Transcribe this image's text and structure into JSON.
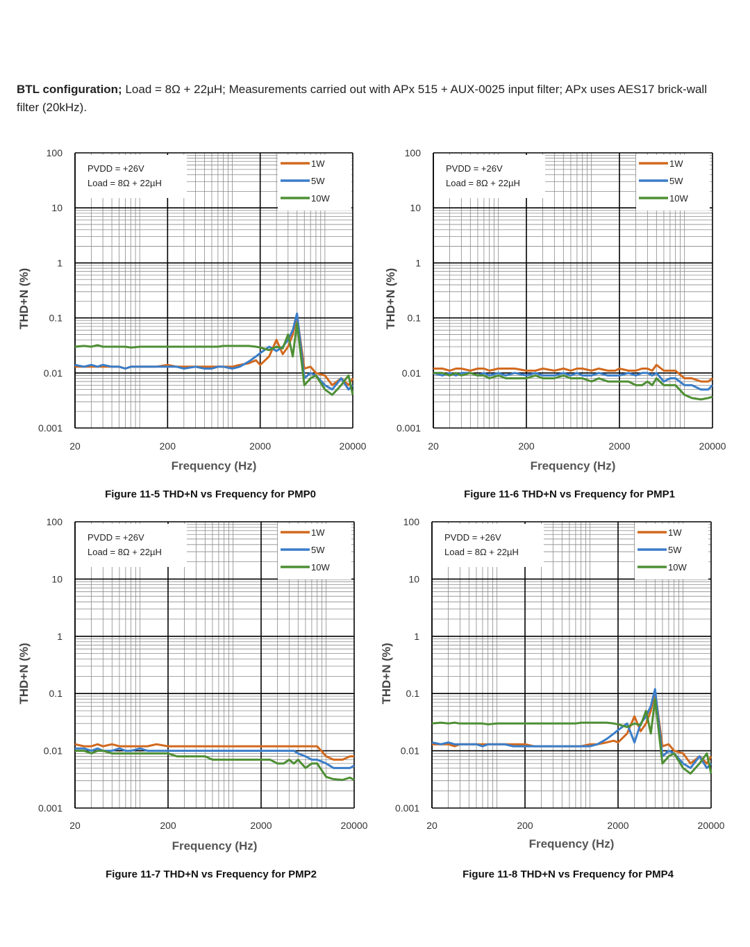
{
  "intro": {
    "lead": "BTL configuration;",
    "text": " Load = 8Ω + 22µH; Measurements carried out with APx 515 + AUX-0025 input filter; APx uses AES17 brick-wall filter (20kHz)."
  },
  "colors": {
    "1W": "#D2691E",
    "5W": "#3A7DC9",
    "10W": "#4E8F34",
    "grid_major": "#000000",
    "grid_minor": "#8a8a8a"
  },
  "chart_data": [
    {
      "type": "line",
      "caption": "Figure 11-5 THD+N vs Frequency for PMP0",
      "xlabel": "Frequency (Hz)",
      "ylabel": "THD+N (%)",
      "x_scale": "log",
      "y_scale": "log",
      "xlim": [
        20,
        20000
      ],
      "ylim": [
        0.001,
        100
      ],
      "x_ticks": [
        "20",
        "200",
        "2000",
        "20000"
      ],
      "y_ticks": [
        "100",
        "10",
        "1",
        "0.1",
        "0.01",
        "0.001"
      ],
      "annotation": [
        "PVDD = +26V",
        "Load = 8Ω + 22µH"
      ],
      "legend": "top-right",
      "grid": true,
      "x": [
        20,
        25,
        30,
        35,
        40,
        50,
        60,
        70,
        80,
        100,
        120,
        150,
        200,
        250,
        300,
        400,
        500,
        600,
        700,
        800,
        1000,
        1200,
        1500,
        1800,
        2000,
        2500,
        3000,
        3500,
        4000,
        4500,
        5000,
        6000,
        7000,
        8000,
        10000,
        12000,
        15000,
        18000,
        20000
      ],
      "series": [
        {
          "name": "1W",
          "values": [
            0.013,
            0.013,
            0.013,
            0.013,
            0.013,
            0.013,
            0.013,
            0.012,
            0.013,
            0.013,
            0.013,
            0.013,
            0.014,
            0.013,
            0.013,
            0.013,
            0.013,
            0.013,
            0.013,
            0.013,
            0.013,
            0.014,
            0.015,
            0.017,
            0.014,
            0.02,
            0.04,
            0.022,
            0.03,
            0.05,
            0.11,
            0.012,
            0.013,
            0.01,
            0.009,
            0.006,
            0.008,
            0.006,
            0.008
          ]
        },
        {
          "name": "5W",
          "values": [
            0.014,
            0.013,
            0.014,
            0.013,
            0.014,
            0.013,
            0.013,
            0.012,
            0.013,
            0.013,
            0.013,
            0.013,
            0.013,
            0.013,
            0.012,
            0.013,
            0.012,
            0.012,
            0.013,
            0.013,
            0.012,
            0.013,
            0.016,
            0.02,
            0.023,
            0.03,
            0.025,
            0.03,
            0.04,
            0.06,
            0.12,
            0.008,
            0.01,
            0.009,
            0.006,
            0.005,
            0.008,
            0.005,
            0.006
          ]
        },
        {
          "name": "10W",
          "values": [
            0.03,
            0.031,
            0.03,
            0.032,
            0.03,
            0.03,
            0.03,
            0.03,
            0.029,
            0.03,
            0.03,
            0.03,
            0.03,
            0.03,
            0.03,
            0.03,
            0.03,
            0.03,
            0.03,
            0.031,
            0.031,
            0.031,
            0.031,
            0.03,
            0.029,
            0.026,
            0.03,
            0.028,
            0.05,
            0.02,
            0.08,
            0.006,
            0.008,
            0.009,
            0.005,
            0.004,
            0.006,
            0.009,
            0.004
          ]
        }
      ]
    },
    {
      "type": "line",
      "caption": "Figure 11-6 THD+N vs Frequency for PMP1",
      "xlabel": "Frequency (Hz)",
      "ylabel": "THD+N (%)",
      "x_scale": "log",
      "y_scale": "log",
      "xlim": [
        20,
        20000
      ],
      "ylim": [
        0.001,
        100
      ],
      "x_ticks": [
        "20",
        "200",
        "2000",
        "20000"
      ],
      "y_ticks": [
        "100",
        "10",
        "1",
        "0.1",
        "0.01",
        "0.001"
      ],
      "annotation": [
        "PVDD = +26V",
        "Load = 8Ω + 22µH"
      ],
      "legend": "top-right",
      "grid": true,
      "x": [
        20,
        25,
        30,
        35,
        40,
        50,
        60,
        70,
        80,
        100,
        120,
        150,
        200,
        250,
        300,
        400,
        500,
        600,
        700,
        800,
        1000,
        1200,
        1500,
        1800,
        2000,
        2500,
        3000,
        3500,
        4000,
        4500,
        5000,
        6000,
        7000,
        8000,
        10000,
        12000,
        15000,
        18000,
        20000
      ],
      "series": [
        {
          "name": "1W",
          "values": [
            0.012,
            0.012,
            0.011,
            0.012,
            0.012,
            0.011,
            0.012,
            0.012,
            0.011,
            0.012,
            0.012,
            0.012,
            0.011,
            0.011,
            0.012,
            0.011,
            0.012,
            0.011,
            0.012,
            0.012,
            0.011,
            0.012,
            0.011,
            0.011,
            0.012,
            0.011,
            0.011,
            0.012,
            0.012,
            0.011,
            0.014,
            0.011,
            0.011,
            0.011,
            0.008,
            0.008,
            0.007,
            0.007,
            0.008
          ]
        },
        {
          "name": "5W",
          "values": [
            0.01,
            0.009,
            0.01,
            0.009,
            0.01,
            0.01,
            0.009,
            0.01,
            0.009,
            0.01,
            0.009,
            0.01,
            0.009,
            0.01,
            0.009,
            0.009,
            0.01,
            0.009,
            0.01,
            0.009,
            0.009,
            0.01,
            0.009,
            0.009,
            0.009,
            0.01,
            0.009,
            0.01,
            0.01,
            0.009,
            0.01,
            0.007,
            0.008,
            0.008,
            0.006,
            0.006,
            0.005,
            0.005,
            0.006
          ]
        },
        {
          "name": "10W",
          "values": [
            0.01,
            0.01,
            0.009,
            0.01,
            0.009,
            0.01,
            0.009,
            0.009,
            0.008,
            0.009,
            0.008,
            0.008,
            0.008,
            0.009,
            0.008,
            0.008,
            0.009,
            0.008,
            0.008,
            0.008,
            0.007,
            0.008,
            0.007,
            0.007,
            0.007,
            0.007,
            0.006,
            0.006,
            0.007,
            0.006,
            0.008,
            0.006,
            0.006,
            0.006,
            0.004,
            0.0035,
            0.0033,
            0.0035,
            0.0037
          ]
        }
      ]
    },
    {
      "type": "line",
      "caption": "Figure 11-7 THD+N vs Frequency for PMP2",
      "xlabel": "Frequency (Hz)",
      "ylabel": "THD+N (%)",
      "x_scale": "log",
      "y_scale": "log",
      "xlim": [
        20,
        20000
      ],
      "ylim": [
        0.001,
        100
      ],
      "x_ticks": [
        "20",
        "200",
        "2000",
        "20000"
      ],
      "y_ticks": [
        "100",
        "10",
        "1",
        "0.1",
        "0.01",
        "0.001"
      ],
      "annotation": [
        "PVDD = +26V",
        "Load = 8Ω + 22µH"
      ],
      "legend": "top-right",
      "grid": true,
      "x": [
        20,
        25,
        30,
        35,
        40,
        50,
        60,
        70,
        80,
        100,
        120,
        150,
        200,
        250,
        300,
        400,
        500,
        600,
        700,
        800,
        1000,
        1200,
        1500,
        1800,
        2000,
        2500,
        3000,
        3500,
        4000,
        4500,
        5000,
        6000,
        7000,
        8000,
        10000,
        12000,
        15000,
        18000,
        20000
      ],
      "series": [
        {
          "name": "1W",
          "values": [
            0.013,
            0.012,
            0.012,
            0.013,
            0.012,
            0.013,
            0.012,
            0.012,
            0.012,
            0.012,
            0.012,
            0.013,
            0.012,
            0.012,
            0.012,
            0.012,
            0.012,
            0.012,
            0.012,
            0.012,
            0.012,
            0.012,
            0.012,
            0.012,
            0.012,
            0.012,
            0.012,
            0.012,
            0.012,
            0.012,
            0.012,
            0.012,
            0.012,
            0.012,
            0.008,
            0.007,
            0.007,
            0.008,
            0.008
          ]
        },
        {
          "name": "5W",
          "values": [
            0.011,
            0.011,
            0.01,
            0.011,
            0.01,
            0.01,
            0.011,
            0.01,
            0.01,
            0.011,
            0.01,
            0.01,
            0.01,
            0.01,
            0.01,
            0.01,
            0.01,
            0.01,
            0.01,
            0.01,
            0.01,
            0.01,
            0.01,
            0.01,
            0.01,
            0.01,
            0.01,
            0.01,
            0.01,
            0.01,
            0.009,
            0.008,
            0.007,
            0.007,
            0.006,
            0.005,
            0.005,
            0.005,
            0.0055
          ]
        },
        {
          "name": "10W",
          "values": [
            0.01,
            0.01,
            0.009,
            0.01,
            0.01,
            0.009,
            0.009,
            0.009,
            0.009,
            0.009,
            0.009,
            0.009,
            0.009,
            0.008,
            0.008,
            0.008,
            0.008,
            0.007,
            0.007,
            0.007,
            0.007,
            0.007,
            0.007,
            0.007,
            0.007,
            0.007,
            0.006,
            0.006,
            0.007,
            0.006,
            0.007,
            0.005,
            0.006,
            0.006,
            0.0035,
            0.0032,
            0.0031,
            0.0034,
            0.0031
          ]
        }
      ]
    },
    {
      "type": "line",
      "caption": "Figure 11-8 THD+N vs Frequency for PMP4",
      "xlabel": "Frequency (Hz)",
      "ylabel": "THD+N (%)",
      "x_scale": "log",
      "y_scale": "log",
      "xlim": [
        20,
        20000
      ],
      "ylim": [
        0.001,
        100
      ],
      "x_ticks": [
        "20",
        "200",
        "2000",
        "20000"
      ],
      "y_ticks": [
        "100",
        "10",
        "1",
        "0.1",
        "0.01",
        "0.001"
      ],
      "annotation": [
        "PVDD = +26V",
        "Load = 8Ω + 22µH"
      ],
      "legend": "top-right",
      "grid": true,
      "x": [
        20,
        25,
        30,
        35,
        40,
        50,
        60,
        70,
        80,
        100,
        120,
        150,
        200,
        250,
        300,
        400,
        500,
        600,
        700,
        800,
        1000,
        1200,
        1500,
        1800,
        2000,
        2500,
        3000,
        3500,
        4000,
        4500,
        5000,
        6000,
        7000,
        8000,
        10000,
        12000,
        15000,
        18000,
        20000
      ],
      "series": [
        {
          "name": "1W",
          "values": [
            0.013,
            0.013,
            0.013,
            0.012,
            0.013,
            0.013,
            0.013,
            0.013,
            0.013,
            0.013,
            0.013,
            0.013,
            0.013,
            0.012,
            0.012,
            0.012,
            0.012,
            0.012,
            0.012,
            0.012,
            0.013,
            0.013,
            0.014,
            0.015,
            0.014,
            0.02,
            0.04,
            0.022,
            0.03,
            0.05,
            0.11,
            0.012,
            0.013,
            0.01,
            0.009,
            0.006,
            0.008,
            0.006,
            0.008
          ]
        },
        {
          "name": "5W",
          "values": [
            0.014,
            0.013,
            0.014,
            0.013,
            0.013,
            0.013,
            0.013,
            0.012,
            0.013,
            0.013,
            0.013,
            0.012,
            0.012,
            0.012,
            0.012,
            0.012,
            0.012,
            0.012,
            0.012,
            0.012,
            0.012,
            0.013,
            0.016,
            0.02,
            0.023,
            0.03,
            0.014,
            0.03,
            0.04,
            0.06,
            0.12,
            0.008,
            0.01,
            0.009,
            0.006,
            0.005,
            0.008,
            0.005,
            0.006
          ]
        },
        {
          "name": "10W",
          "values": [
            0.03,
            0.031,
            0.03,
            0.031,
            0.03,
            0.03,
            0.03,
            0.03,
            0.029,
            0.03,
            0.03,
            0.03,
            0.03,
            0.03,
            0.03,
            0.03,
            0.03,
            0.03,
            0.03,
            0.031,
            0.031,
            0.031,
            0.031,
            0.03,
            0.029,
            0.026,
            0.03,
            0.028,
            0.05,
            0.02,
            0.08,
            0.006,
            0.008,
            0.009,
            0.005,
            0.004,
            0.006,
            0.009,
            0.004
          ]
        }
      ]
    }
  ]
}
